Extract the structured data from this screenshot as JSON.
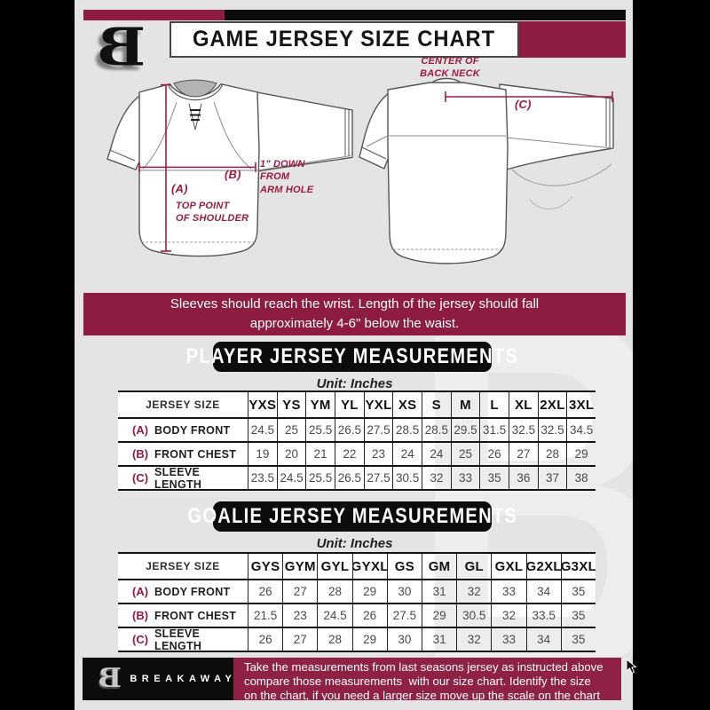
{
  "title": "GAME JERSEY SIZE CHART",
  "logo_letter": "B",
  "watermark_letter": "B",
  "annotations": {
    "center_back_neck": "CENTER OF\nBACK NECK",
    "c_label": "(C)",
    "b_label": "(B)",
    "a_label": "(A)",
    "one_inch_note": "1\" DOWN\nFROM\nARM HOLE",
    "top_point_note": "TOP POINT\nOF SHOULDER"
  },
  "banner_note": "Sleeves should reach the wrist. Length of the jersey should fall\napproximately 4-6\" below the waist.",
  "player": {
    "heading": "PLAYER JERSEY MEASUREMENTS",
    "unit": "Unit: Inches"
  },
  "goalie": {
    "heading": "GOALIE JERSEY MEASUREMENTS",
    "unit": "Unit: Inches"
  },
  "player_table": {
    "size_header": "JERSEY SIZE",
    "sizes": [
      "YXS",
      "YS",
      "YM",
      "YL",
      "YXL",
      "XS",
      "S",
      "M",
      "L",
      "XL",
      "2XL",
      "3XL"
    ],
    "rows": [
      {
        "key": "(A)",
        "label": "BODY FRONT",
        "values": [
          "24.5",
          "25",
          "25.5",
          "26.5",
          "27.5",
          "28.5",
          "28.5",
          "29.5",
          "31.5",
          "32.5",
          "32.5",
          "34.5"
        ]
      },
      {
        "key": "(B)",
        "label": "FRONT CHEST",
        "values": [
          "19",
          "20",
          "21",
          "22",
          "23",
          "24",
          "24",
          "25",
          "26",
          "27",
          "28",
          "29"
        ]
      },
      {
        "key": "(C)",
        "label": "SLEEVE LENGTH",
        "values": [
          "23.5",
          "24.5",
          "25.5",
          "26.5",
          "27.5",
          "30.5",
          "32",
          "33",
          "35",
          "36",
          "37",
          "38"
        ]
      }
    ]
  },
  "goalie_table": {
    "size_header": "JERSEY SIZE",
    "sizes": [
      "GYS",
      "GYM",
      "GYL",
      "GYXL",
      "GS",
      "GM",
      "GL",
      "GXL",
      "G2XL",
      "G3XL"
    ],
    "rows": [
      {
        "key": "(A)",
        "label": "BODY FRONT",
        "values": [
          "26",
          "27",
          "28",
          "29",
          "30",
          "31",
          "32",
          "33",
          "34",
          "35"
        ]
      },
      {
        "key": "(B)",
        "label": "FRONT CHEST",
        "values": [
          "21.5",
          "23",
          "24.5",
          "26",
          "27.5",
          "29",
          "30.5",
          "32",
          "33.5",
          "35"
        ]
      },
      {
        "key": "(C)",
        "label": "SLEEVE LENGTH",
        "values": [
          "26",
          "27",
          "28",
          "29",
          "30",
          "31",
          "32",
          "33",
          "34",
          "35"
        ]
      }
    ]
  },
  "footer": {
    "brand": "BREAKAWAY",
    "logo_letter": "B",
    "note": "Take the measurements from last seasons jersey as instructed above\ncompare those measurements  with our size chart. Identify the size\non the chart, if you need a larger size move up the scale on the chart"
  },
  "colors": {
    "maroon": "#8d1c40",
    "footer_maroon": "#8e2144",
    "black": "#0b0b0b",
    "background": "#e4e4e4",
    "watermark": "#ededed"
  }
}
